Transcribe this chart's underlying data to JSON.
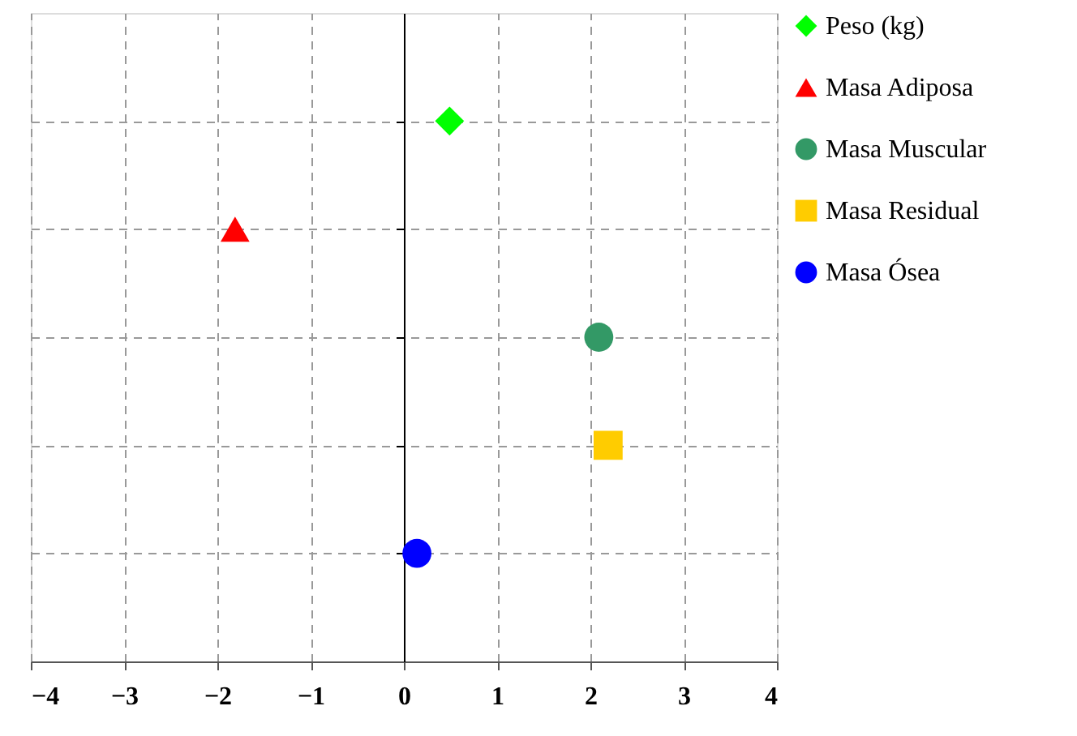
{
  "chart_data": {
    "type": "scatter",
    "orientation": "horizontal",
    "categories": [
      null,
      null,
      null,
      null,
      null
    ],
    "xlim": [
      -4,
      4
    ],
    "xticks": [
      -4,
      -3,
      -2,
      -1,
      0,
      1,
      2,
      3,
      4
    ],
    "tick_labels": "x",
    "grid": true,
    "legend": "right",
    "series": [
      {
        "name": "Peso (kg)",
        "color": "#00ff00",
        "marker": "diamond",
        "values": [
          0.49,
          null,
          null,
          null,
          null
        ]
      },
      {
        "name": "Masa Adiposa",
        "color": "#ff0000",
        "marker": "triangle",
        "values": [
          null,
          -1.81,
          null,
          null,
          null
        ]
      },
      {
        "name": "Masa Muscular",
        "color": "#339966",
        "marker": "circle",
        "values": [
          null,
          null,
          2.09,
          null,
          null
        ]
      },
      {
        "name": "Masa Residual",
        "color": "#ffcc00",
        "marker": "square",
        "values": [
          null,
          null,
          null,
          2.19,
          null
        ]
      },
      {
        "name": "Masa Ósea",
        "color": "#0000ff",
        "marker": "circle",
        "values": [
          null,
          null,
          null,
          null,
          0.14
        ]
      }
    ]
  }
}
